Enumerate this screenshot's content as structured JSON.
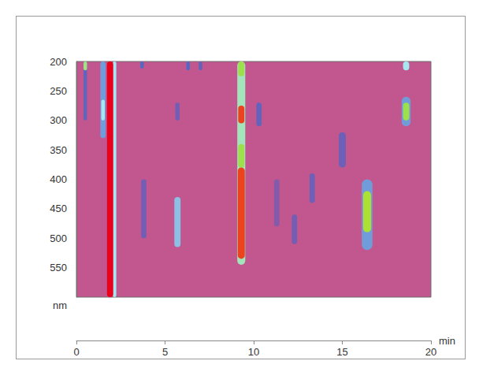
{
  "chart_data": {
    "type": "heatmap",
    "x_label": "min",
    "y_label": "nm",
    "xlim": [
      0,
      20
    ],
    "xticks": [
      0,
      5,
      10,
      15,
      20
    ],
    "ylim": [
      200,
      600
    ],
    "yticks": [
      200,
      250,
      300,
      350,
      400,
      450,
      500,
      550
    ],
    "grid": false,
    "intensity_range": [
      0,
      100
    ],
    "spots": [
      {
        "time": 0.5,
        "width": 0.2,
        "wl_from": 200,
        "wl_to": 300,
        "intensity": 25
      },
      {
        "time": 0.5,
        "width": 0.2,
        "wl_from": 200,
        "wl_to": 215,
        "intensity": 60
      },
      {
        "time": 1.5,
        "width": 0.3,
        "wl_from": 200,
        "wl_to": 330,
        "intensity": 40
      },
      {
        "time": 1.5,
        "width": 0.2,
        "wl_from": 265,
        "wl_to": 300,
        "intensity": 50
      },
      {
        "time": 2.15,
        "width": 0.2,
        "wl_from": 200,
        "wl_to": 600,
        "intensity": 50
      },
      {
        "time": 1.9,
        "width": 0.35,
        "wl_from": 200,
        "wl_to": 600,
        "intensity": 100
      },
      {
        "time": 3.7,
        "width": 0.2,
        "wl_from": 200,
        "wl_to": 212,
        "intensity": 30
      },
      {
        "time": 3.8,
        "width": 0.3,
        "wl_from": 400,
        "wl_to": 500,
        "intensity": 20
      },
      {
        "time": 5.7,
        "width": 0.25,
        "wl_from": 270,
        "wl_to": 300,
        "intensity": 20
      },
      {
        "time": 5.7,
        "width": 0.35,
        "wl_from": 430,
        "wl_to": 515,
        "intensity": 45
      },
      {
        "time": 6.3,
        "width": 0.2,
        "wl_from": 200,
        "wl_to": 215,
        "intensity": 30
      },
      {
        "time": 7.0,
        "width": 0.2,
        "wl_from": 200,
        "wl_to": 215,
        "intensity": 25
      },
      {
        "time": 9.3,
        "width": 0.45,
        "wl_from": 200,
        "wl_to": 545,
        "intensity": 55
      },
      {
        "time": 9.3,
        "width": 0.35,
        "wl_from": 200,
        "wl_to": 225,
        "intensity": 65
      },
      {
        "time": 9.3,
        "width": 0.35,
        "wl_from": 275,
        "wl_to": 305,
        "intensity": 95
      },
      {
        "time": 9.3,
        "width": 0.35,
        "wl_from": 340,
        "wl_to": 380,
        "intensity": 65
      },
      {
        "time": 9.3,
        "width": 0.4,
        "wl_from": 380,
        "wl_to": 535,
        "intensity": 95
      },
      {
        "time": 10.3,
        "width": 0.3,
        "wl_from": 270,
        "wl_to": 310,
        "intensity": 25
      },
      {
        "time": 11.3,
        "width": 0.3,
        "wl_from": 400,
        "wl_to": 480,
        "intensity": 15
      },
      {
        "time": 12.3,
        "width": 0.3,
        "wl_from": 460,
        "wl_to": 510,
        "intensity": 20
      },
      {
        "time": 13.3,
        "width": 0.3,
        "wl_from": 390,
        "wl_to": 440,
        "intensity": 22
      },
      {
        "time": 15.0,
        "width": 0.4,
        "wl_from": 320,
        "wl_to": 380,
        "intensity": 22
      },
      {
        "time": 16.4,
        "width": 0.6,
        "wl_from": 400,
        "wl_to": 520,
        "intensity": 40
      },
      {
        "time": 16.4,
        "width": 0.45,
        "wl_from": 420,
        "wl_to": 490,
        "intensity": 70
      },
      {
        "time": 18.6,
        "width": 0.35,
        "wl_from": 200,
        "wl_to": 215,
        "intensity": 50
      },
      {
        "time": 18.6,
        "width": 0.5,
        "wl_from": 260,
        "wl_to": 310,
        "intensity": 40
      },
      {
        "time": 18.6,
        "width": 0.35,
        "wl_from": 270,
        "wl_to": 300,
        "intensity": 65
      }
    ]
  }
}
